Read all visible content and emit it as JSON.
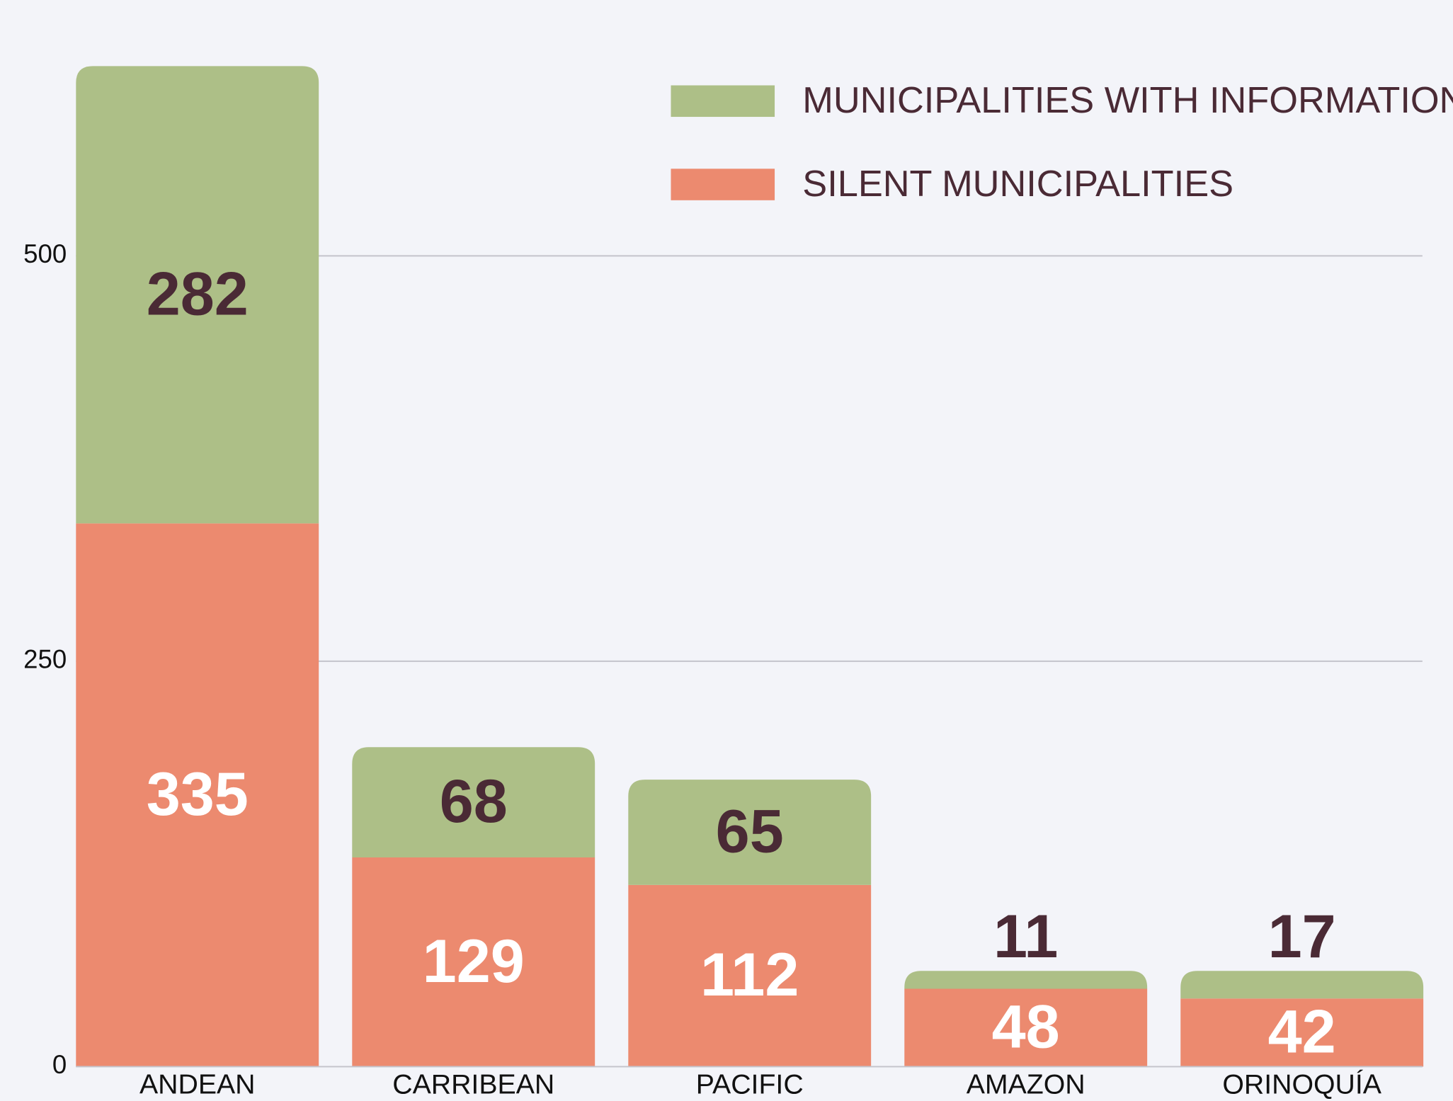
{
  "chart_data": {
    "type": "bar",
    "stacked": true,
    "categories": [
      "ANDEAN",
      "CARRIBEAN",
      "PACIFIC",
      "AMAZON",
      "ORINOQUÍA"
    ],
    "series": [
      {
        "name": "SILENT MUNICIPALITIES",
        "color": "#ec8a6f",
        "values": [
          335,
          129,
          112,
          48,
          42
        ]
      },
      {
        "name": "MUNICIPALITIES WITH INFORMATION",
        "color": "#adbf87",
        "values": [
          282,
          68,
          65,
          11,
          17
        ]
      }
    ],
    "ylim": [
      0,
      650
    ],
    "yticks": [
      0,
      250,
      500
    ],
    "grid": true,
    "legend": "top-right"
  }
}
